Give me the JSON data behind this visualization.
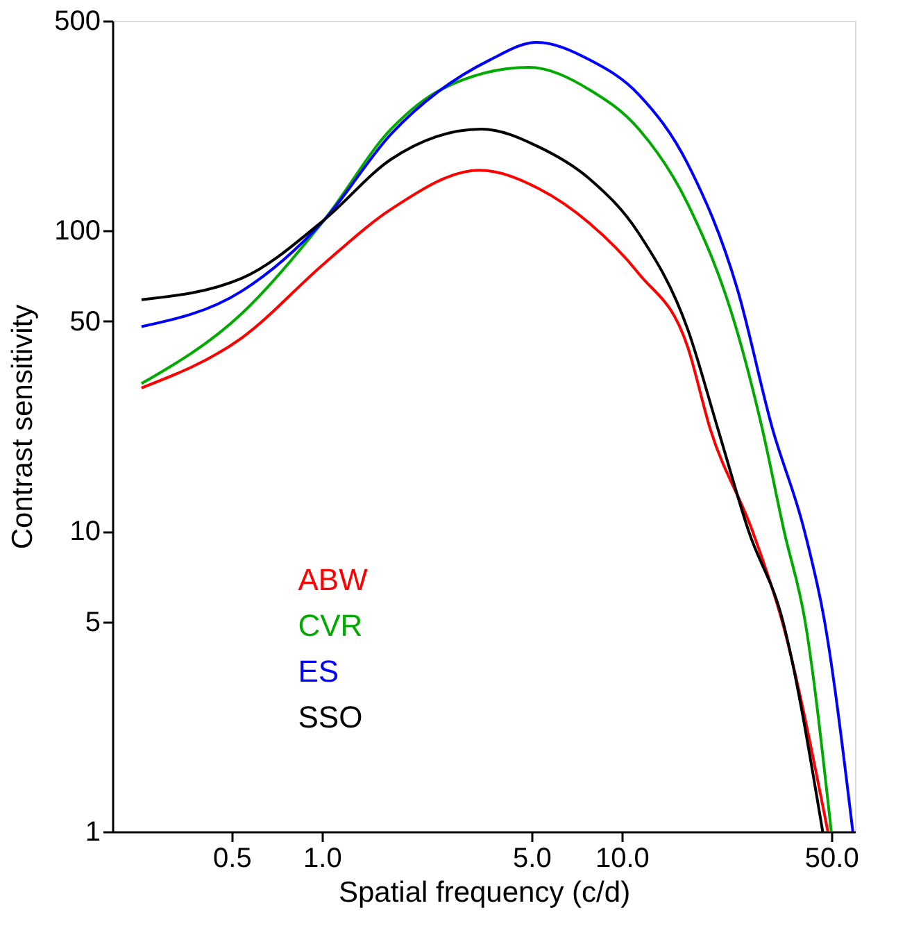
{
  "chart_data": {
    "type": "line",
    "xlabel": "Spatial frequency (c/d)",
    "ylabel": "Contrast sensitivity",
    "log": "xy",
    "xlim": [
      0.2,
      60
    ],
    "ylim": [
      1,
      500
    ],
    "xticks": [
      0.5,
      {
        "value": 1,
        "label": "1.0"
      },
      {
        "value": 5,
        "label": "5.0"
      },
      {
        "value": 10,
        "label": "10.0"
      },
      {
        "value": 50,
        "label": "50.0"
      }
    ],
    "yticks": [
      1,
      5,
      10,
      50,
      100,
      500
    ],
    "grid": false,
    "legend": "bottom left",
    "line_style": "solid",
    "series": [
      {
        "name": "ABW",
        "color": "#ff0000",
        "x": [
          0.25,
          0.54,
          1.02,
          1.7,
          3.35,
          5.3,
          7.8,
          11.4,
          16.6,
          19.7,
          27.3,
          34.3,
          48.7
        ],
        "values": [
          30,
          44,
          78,
          118,
          159,
          138,
          106,
          72,
          41,
          22,
          10,
          5,
          1
        ]
      },
      {
        "name": "CVR",
        "color": "#00aa00",
        "x": [
          0.25,
          0.54,
          1.02,
          1.7,
          2.49,
          4.9,
          7.8,
          11.4,
          16.6,
          24.3,
          29.4,
          34.8,
          40.9,
          50
        ],
        "values": [
          31,
          53,
          109,
          218,
          295,
          350,
          295,
          218,
          123,
          46,
          22,
          10,
          5,
          1
        ]
      },
      {
        "name": "ES",
        "color": "#0000ff",
        "x": [
          0.25,
          0.54,
          1.02,
          1.7,
          3.64,
          5.2,
          7.8,
          11.4,
          16.6,
          24.3,
          31.8,
          40.7,
          47.5,
          59
        ],
        "values": [
          48,
          63,
          109,
          210,
          371,
          424,
          371,
          284,
          167,
          64,
          22,
          10,
          5,
          1
        ]
      },
      {
        "name": "SSO",
        "color": "#000000",
        "x": [
          0.25,
          0.54,
          1.02,
          1.7,
          3.4,
          5.3,
          7.8,
          11.4,
          16.6,
          20.9,
          26.5,
          34.5,
          46.8
        ],
        "values": [
          59,
          69.5,
          109,
          173,
          218,
          190,
          149,
          98,
          47,
          22,
          10,
          5,
          1
        ]
      }
    ]
  }
}
